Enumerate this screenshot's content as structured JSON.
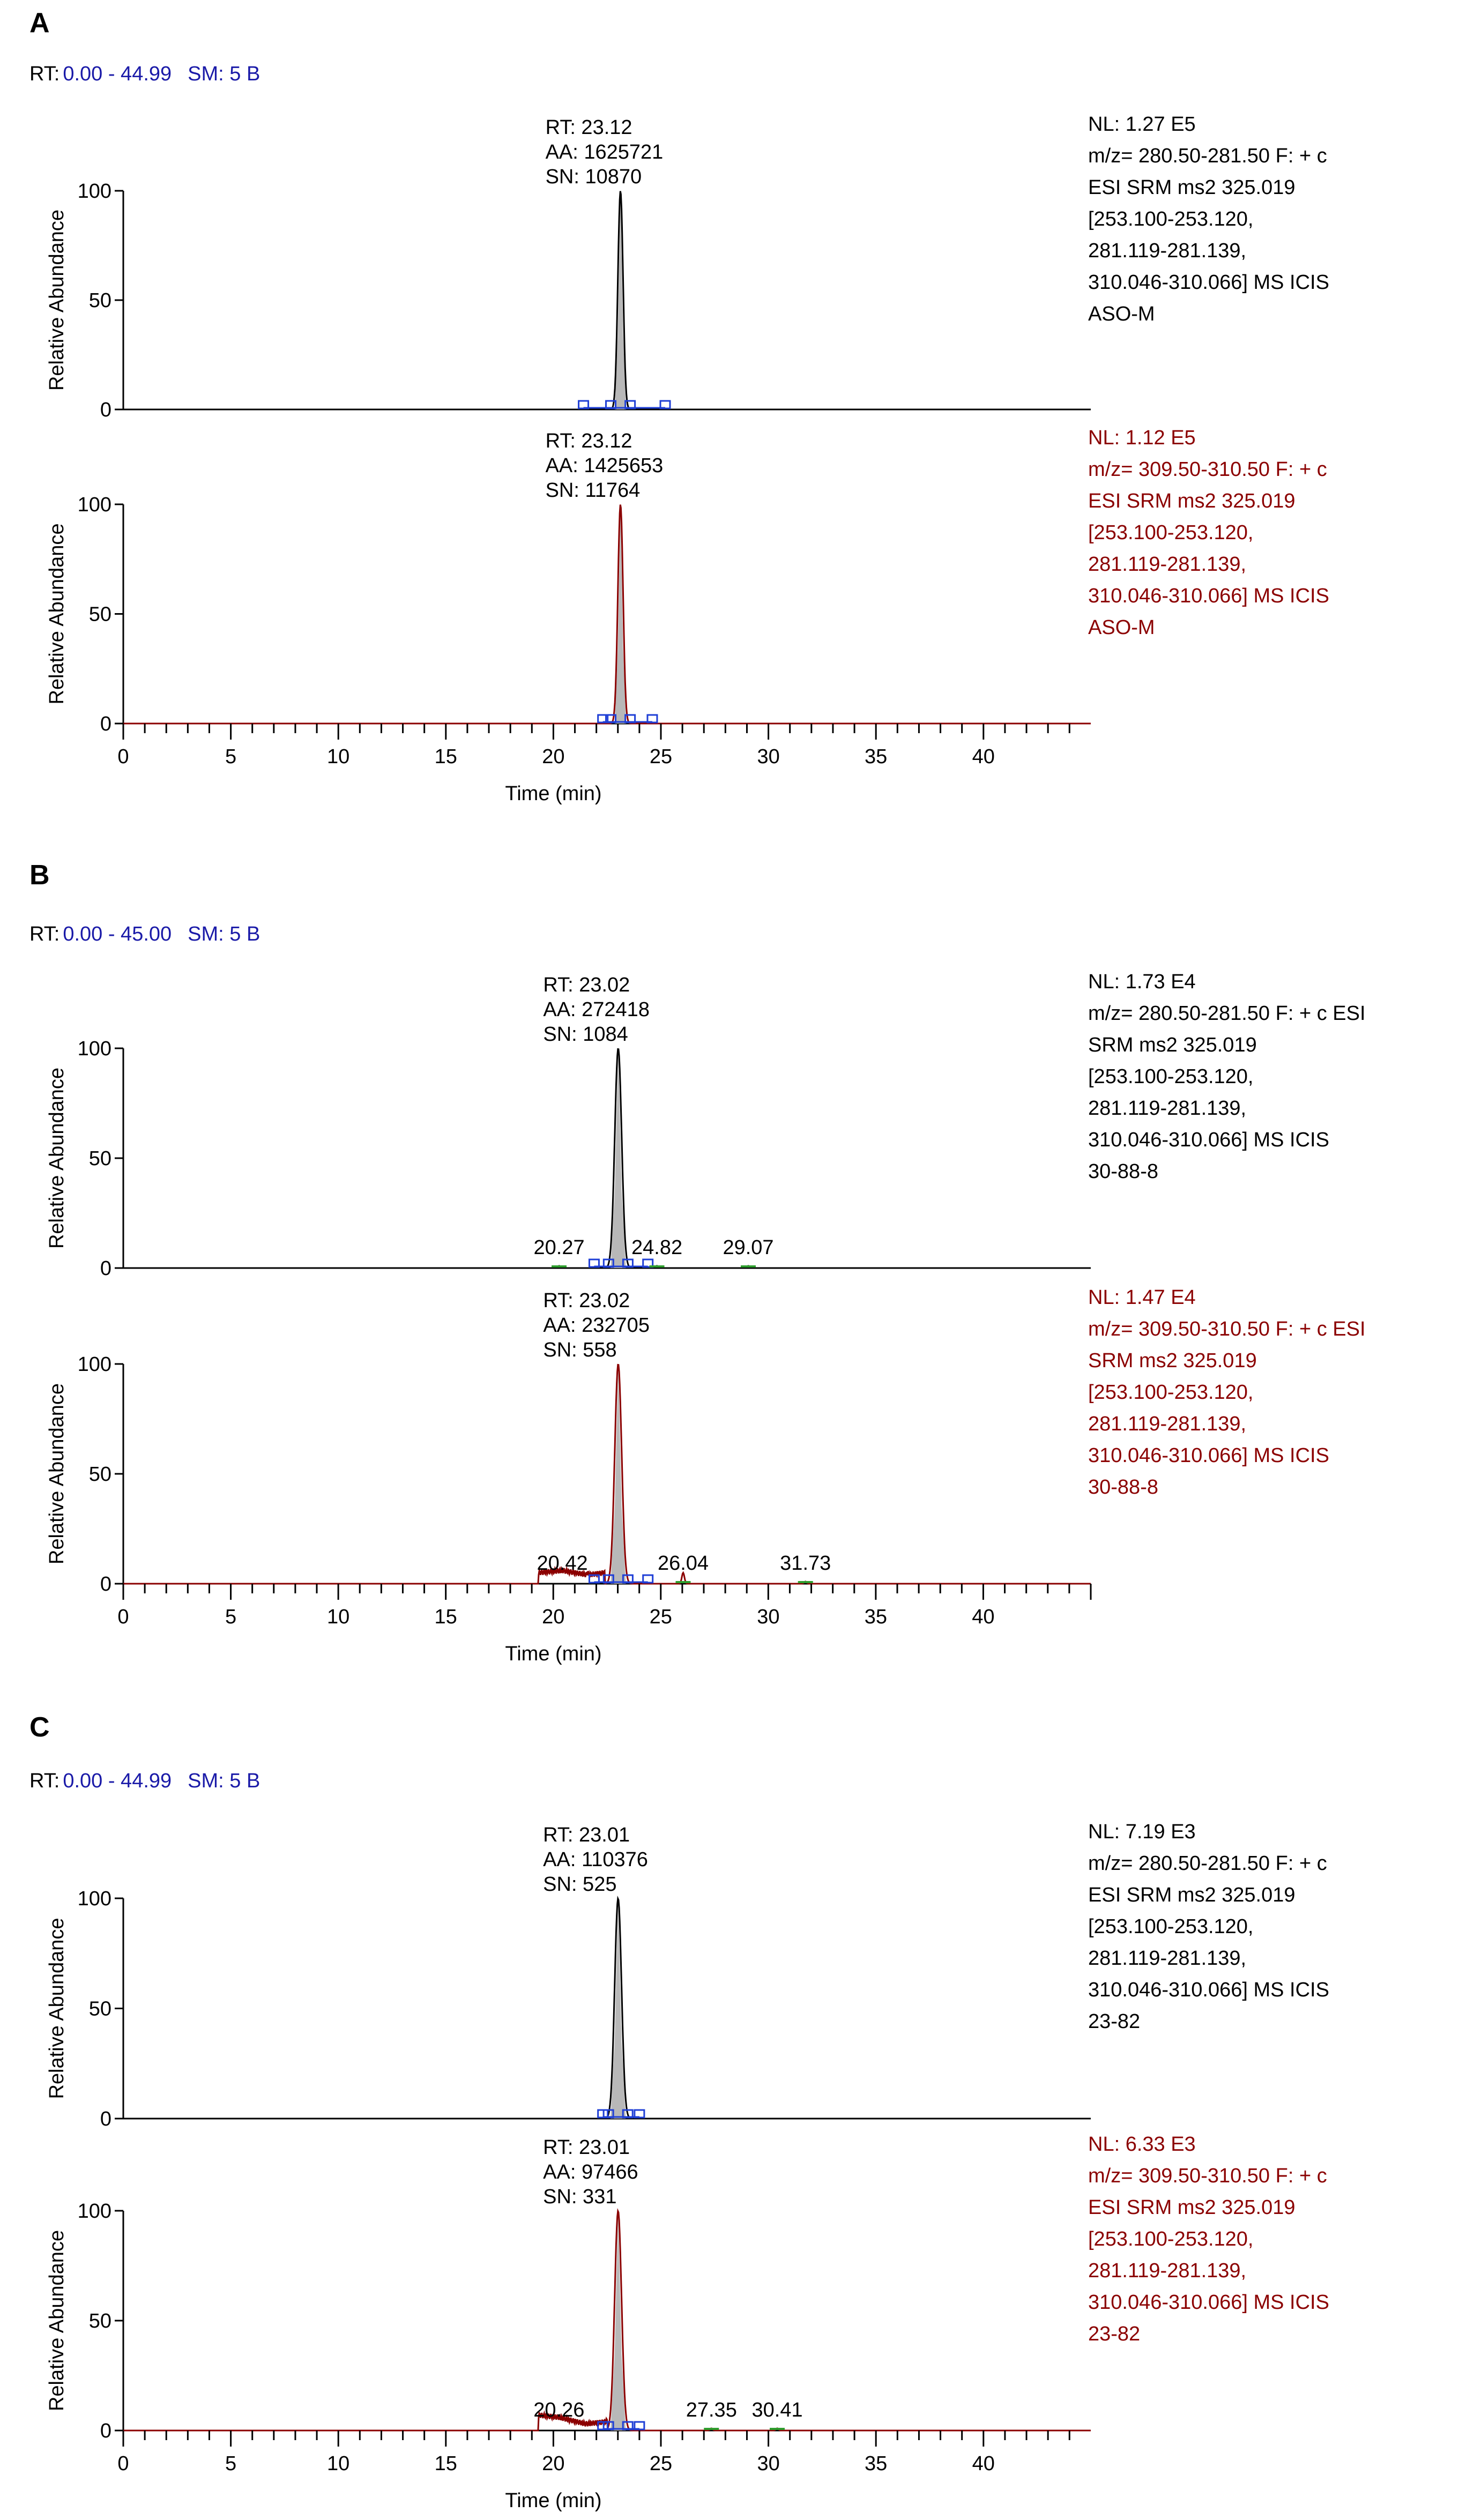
{
  "colors": {
    "axis": "#000000",
    "trace_black": "#000000",
    "trace_red": "#8b0000",
    "header_blue": "#1a1aa8",
    "marker_blue": "#1f3fd6",
    "marker_green": "#2e9e2e",
    "fill_grey": "#b8b8b8"
  },
  "chart_data": [
    {
      "panel": "A",
      "header": {
        "rt_label": "RT:",
        "rt_range": "0.00 - 44.99",
        "smooth": "SM: 5 B"
      },
      "type": "line",
      "x_ticks": [
        0,
        5,
        10,
        15,
        20,
        25,
        30,
        35,
        40
      ],
      "y_ticks": [
        0,
        50,
        100
      ],
      "xlim": [
        0,
        44.99
      ],
      "ylim": [
        0,
        100
      ],
      "xlabel": "Time (min)",
      "ylabel": "Relative Abundance",
      "series": [
        {
          "name": "transition-1",
          "color": "black",
          "peak_rt": 23.12,
          "peak_width": 0.12,
          "peak_height": 100,
          "baseline": [],
          "minor_peaks": [],
          "integration_window": [
            21.4,
            25.2
          ],
          "peak_label": [
            "RT: 23.12",
            "AA: 1625721",
            "SN: 10870"
          ],
          "minor_labels": [],
          "info": [
            "NL: 1.27 E5",
            "m/z= 280.50-281.50 F: + c",
            "ESI SRM ms2 325.019",
            "[253.100-253.120,",
            "281.119-281.139,",
            "310.046-310.066] MS ICIS",
            "ASO-M"
          ]
        },
        {
          "name": "transition-2",
          "color": "red",
          "peak_rt": 23.12,
          "peak_width": 0.12,
          "peak_height": 100,
          "baseline": [],
          "minor_peaks": [],
          "integration_window": [
            22.3,
            24.6
          ],
          "peak_label": [
            "RT: 23.12",
            "AA: 1425653",
            "SN: 11764"
          ],
          "minor_labels": [],
          "info": [
            "NL: 1.12 E5",
            "m/z= 309.50-310.50 F: + c",
            "ESI SRM ms2 325.019",
            "[253.100-253.120,",
            "281.119-281.139,",
            "310.046-310.066] MS ICIS",
            "ASO-M"
          ]
        }
      ]
    },
    {
      "panel": "B",
      "header": {
        "rt_label": "RT:",
        "rt_range": "0.00 - 45.00",
        "smooth": "SM: 5 B"
      },
      "type": "line",
      "x_ticks": [
        0,
        5,
        10,
        15,
        20,
        25,
        30,
        35,
        40
      ],
      "y_ticks": [
        0,
        50,
        100
      ],
      "xlim": [
        0,
        45.0
      ],
      "ylim": [
        0,
        100
      ],
      "xlabel": "Time (min)",
      "ylabel": "Relative Abundance",
      "series": [
        {
          "name": "transition-1",
          "color": "black",
          "peak_rt": 23.02,
          "peak_width": 0.16,
          "peak_height": 100,
          "baseline": [],
          "minor_peaks": [
            [
              20.27,
              1
            ],
            [
              24.82,
              1
            ],
            [
              29.07,
              1
            ]
          ],
          "integration_window": [
            21.9,
            24.4
          ],
          "peak_label": [
            "RT: 23.02",
            "AA: 272418",
            "SN: 1084"
          ],
          "minor_labels": [
            {
              "rt": 20.27,
              "text": "20.27"
            },
            {
              "rt": 24.82,
              "text": "24.82"
            },
            {
              "rt": 29.07,
              "text": "29.07"
            }
          ],
          "info": [
            "NL: 1.73 E4",
            "m/z= 280.50-281.50 F: + c ESI",
            "SRM ms2 325.019",
            "[253.100-253.120,",
            "281.119-281.139,",
            "310.046-310.066] MS ICIS",
            "30-88-8"
          ]
        },
        {
          "name": "transition-2",
          "color": "red",
          "peak_rt": 23.02,
          "peak_width": 0.16,
          "peak_height": 100,
          "baseline": [
            [
              19.3,
              5
            ],
            [
              20.42,
              6
            ],
            [
              21.6,
              4
            ],
            [
              22.4,
              5
            ]
          ],
          "minor_peaks": [
            [
              26.04,
              5
            ],
            [
              31.73,
              1
            ]
          ],
          "integration_window": [
            21.9,
            24.4
          ],
          "peak_label": [
            "RT: 23.02",
            "AA: 232705",
            "SN: 558"
          ],
          "minor_labels": [
            {
              "rt": 20.42,
              "text": "20.42"
            },
            {
              "rt": 26.04,
              "text": "26.04"
            },
            {
              "rt": 31.73,
              "text": "31.73"
            }
          ],
          "info": [
            "NL: 1.47 E4",
            "m/z= 309.50-310.50 F: + c ESI",
            "SRM ms2 325.019",
            "[253.100-253.120,",
            "281.119-281.139,",
            "310.046-310.066] MS ICIS",
            "30-88-8"
          ]
        }
      ]
    },
    {
      "panel": "C",
      "header": {
        "rt_label": "RT:",
        "rt_range": "0.00 - 44.99",
        "smooth": "SM: 5 B"
      },
      "type": "line",
      "x_ticks": [
        0,
        5,
        10,
        15,
        20,
        25,
        30,
        35,
        40
      ],
      "y_ticks": [
        0,
        50,
        100
      ],
      "xlim": [
        0,
        44.99
      ],
      "ylim": [
        0,
        100
      ],
      "xlabel": "Time (min)",
      "ylabel": "Relative Abundance",
      "series": [
        {
          "name": "transition-1",
          "color": "black",
          "peak_rt": 23.01,
          "peak_width": 0.16,
          "peak_height": 100,
          "baseline": [],
          "minor_peaks": [],
          "integration_window": [
            22.3,
            24.0
          ],
          "peak_label": [
            "RT: 23.01",
            "AA: 110376",
            "SN: 525"
          ],
          "minor_labels": [],
          "info": [
            "NL: 7.19 E3",
            "m/z= 280.50-281.50 F: + c",
            "ESI SRM ms2 325.019",
            "[253.100-253.120,",
            "281.119-281.139,",
            "310.046-310.066] MS ICIS",
            "23-82"
          ]
        },
        {
          "name": "transition-2",
          "color": "red",
          "peak_rt": 23.01,
          "peak_width": 0.16,
          "peak_height": 100,
          "baseline": [
            [
              19.3,
              7
            ],
            [
              20.26,
              6
            ],
            [
              21.5,
              3
            ],
            [
              22.5,
              4
            ]
          ],
          "minor_peaks": [
            [
              27.35,
              1
            ],
            [
              30.41,
              1
            ]
          ],
          "integration_window": [
            22.3,
            24.0
          ],
          "peak_label": [
            "RT: 23.01",
            "AA: 97466",
            "SN: 331"
          ],
          "minor_labels": [
            {
              "rt": 20.26,
              "text": "20.26"
            },
            {
              "rt": 27.35,
              "text": "27.35"
            },
            {
              "rt": 30.41,
              "text": "30.41"
            }
          ],
          "info": [
            "NL: 6.33 E3",
            "m/z= 309.50-310.50 F: + c",
            "ESI SRM ms2 325.019",
            "[253.100-253.120,",
            "281.119-281.139,",
            "310.046-310.066] MS ICIS",
            "23-82"
          ]
        }
      ]
    }
  ]
}
